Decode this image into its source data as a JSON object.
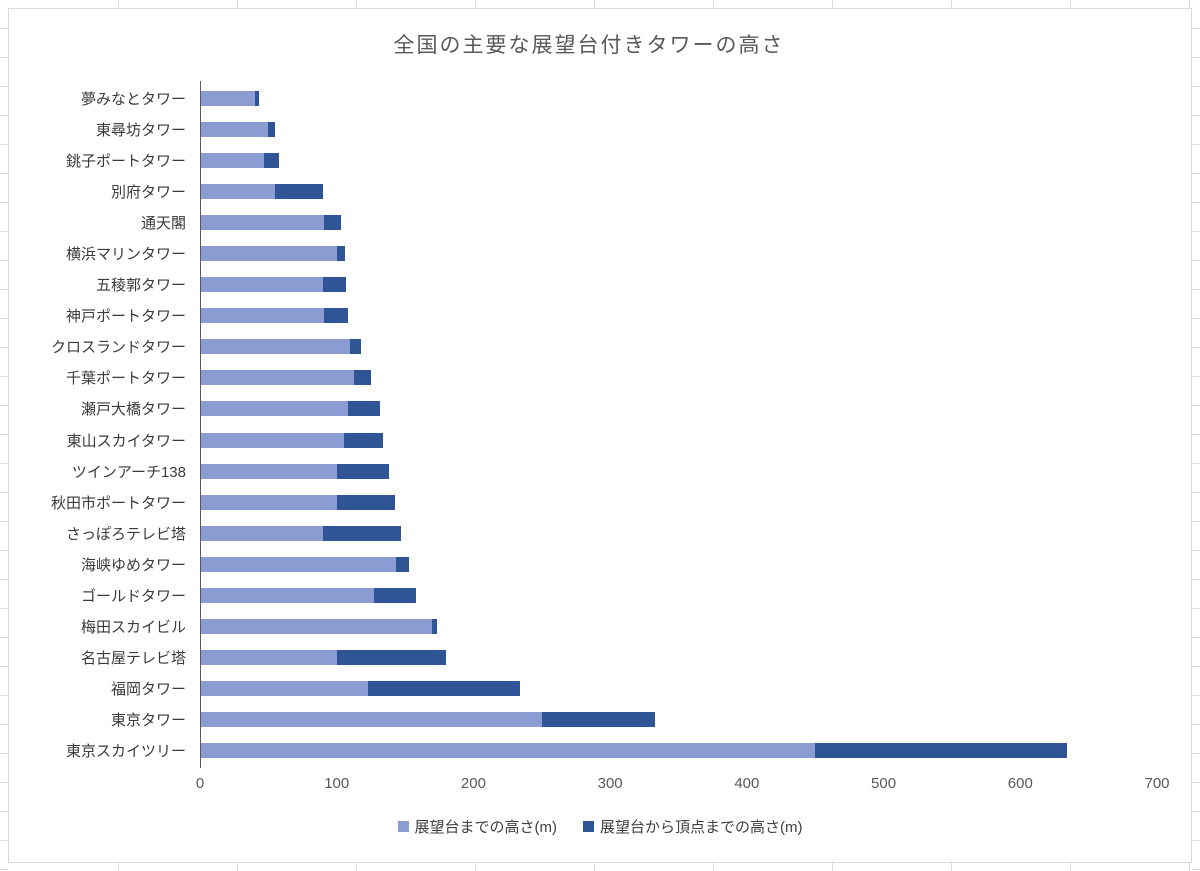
{
  "title": "全国の主要な展望台付きタワーの高さ",
  "chart_data": {
    "type": "bar",
    "orientation": "horizontal",
    "stacked": true,
    "title": "全国の主要な展望台付きタワーの高さ",
    "xlabel": "",
    "ylabel": "",
    "xlim": [
      0,
      700
    ],
    "xticks": [
      0,
      100,
      200,
      300,
      400,
      500,
      600,
      700
    ],
    "grid": false,
    "legend_position": "bottom",
    "categories": [
      "夢みなとタワー",
      "東尋坊タワー",
      "銚子ポートタワー",
      "別府タワー",
      "通天閣",
      "横浜マリンタワー",
      "五稜郭タワー",
      "神戸ポートタワー",
      "クロスランドタワー",
      "千葉ポートタワー",
      "瀬戸大橋タワー",
      "東山スカイタワー",
      "ツインアーチ138",
      "秋田市ポートタワー",
      "さっぽろテレビ塔",
      "海峡ゆめタワー",
      "ゴールドタワー",
      "梅田スカイビル",
      "名古屋テレビ塔",
      "福岡タワー",
      "東京タワー",
      "東京スカイツリー"
    ],
    "series": [
      {
        "name": "展望台までの高さ(m)",
        "color": "#8b9cd2",
        "values": [
          40,
          50,
          47,
          55,
          91,
          100,
          90,
          91,
          110,
          113,
          108,
          105,
          100,
          100,
          90,
          143,
          127,
          170,
          100,
          123,
          250,
          450
        ]
      },
      {
        "name": "展望台から頂点までの高さ(m)",
        "color": "#2f5597",
        "values": [
          3,
          5,
          11,
          35,
          12,
          6,
          17,
          17,
          8,
          12,
          24,
          29,
          38,
          43,
          57,
          10,
          31,
          3,
          80,
          111,
          83,
          184
        ]
      }
    ],
    "totals": [
      43,
      55,
      58,
      90,
      103,
      106,
      107,
      108,
      118,
      125,
      132,
      134,
      138,
      143,
      147,
      153,
      158,
      173,
      180,
      234,
      333,
      634
    ]
  }
}
